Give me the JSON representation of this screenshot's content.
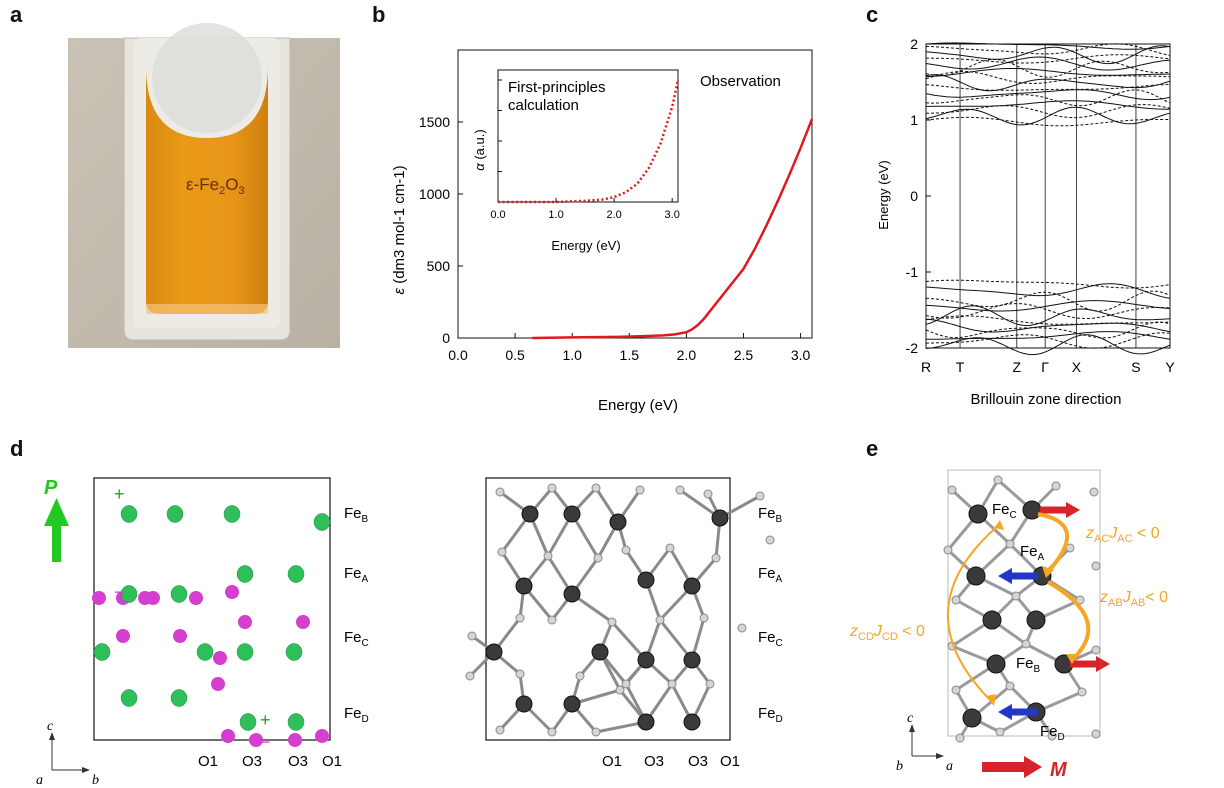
{
  "panels": {
    "a": {
      "letter": "a",
      "sample_label": "ε-Fe",
      "sample_sub1": "2",
      "sample_mid": "O",
      "sample_sub2": "3"
    },
    "b": {
      "letter": "b"
    },
    "c": {
      "letter": "c"
    },
    "d": {
      "letter": "d",
      "p_label": "P",
      "plus": "+",
      "minus": "−",
      "fe_labels": [
        {
          "base": "Fe",
          "sub": "B"
        },
        {
          "base": "Fe",
          "sub": "A"
        },
        {
          "base": "Fe",
          "sub": "C"
        },
        {
          "base": "Fe",
          "sub": "D"
        }
      ],
      "o_labels": [
        "O1",
        "O3",
        "O3",
        "O1"
      ],
      "axis_c": "c",
      "axis_a": "a",
      "axis_b": "b",
      "colors": {
        "positive": "#2fbf5a",
        "negative": "#d43fd0",
        "arrow": "#22c922"
      }
    },
    "e": {
      "letter": "e",
      "fe_labels": [
        {
          "base": "Fe",
          "sub": "C"
        },
        {
          "base": "Fe",
          "sub": "A"
        },
        {
          "base": "Fe",
          "sub": "B"
        },
        {
          "base": "Fe",
          "sub": "D"
        }
      ],
      "j_ac": {
        "z": "z",
        "zsub": "AC",
        "j": "J",
        "jsub": "AC",
        "rel": " < 0"
      },
      "j_ab": {
        "z": "z",
        "zsub": "AB",
        "j": "J",
        "jsub": "AB",
        "rel": "< 0"
      },
      "j_cd": {
        "z": "z",
        "zsub": "CD",
        "j": "J",
        "jsub": "CD",
        "rel": " < 0"
      },
      "axis_c": "c",
      "axis_b": "b",
      "axis_a": "a",
      "m_label": "M",
      "colors": {
        "coupling": "#f5a623",
        "up_spin": "#d9232a",
        "down_spin": "#2436c8"
      }
    }
  },
  "chart_data": [
    {
      "type": "line",
      "panel": "b",
      "xlabel": "Energy (eV)",
      "ylabel": "ε (dm3 mol-1 cm-1)",
      "xlim": [
        0.0,
        3.1
      ],
      "ylim": [
        0,
        2000
      ],
      "xticks": [
        "0.0",
        "0.5",
        "1.0",
        "1.5",
        "2.0",
        "2.5",
        "3.0"
      ],
      "xtick_values": [
        0.0,
        0.5,
        1.0,
        1.5,
        2.0,
        2.5,
        3.0
      ],
      "yticks": [
        "0",
        "500",
        "1000",
        "1500"
      ],
      "ytick_values": [
        0,
        500,
        1000,
        1500
      ],
      "annotation": "Observation",
      "color": "#e0191f",
      "series": [
        {
          "x": [
            0.65,
            0.8,
            1.0,
            1.2,
            1.4,
            1.6,
            1.8,
            1.9,
            2.0,
            2.05,
            2.1,
            2.15,
            2.2,
            2.25,
            2.3,
            2.4,
            2.5,
            2.6,
            2.7,
            2.8,
            2.9,
            3.0,
            3.1
          ],
          "y": [
            0,
            2,
            4,
            6,
            8,
            12,
            18,
            25,
            40,
            60,
            90,
            130,
            180,
            230,
            280,
            380,
            480,
            620,
            780,
            950,
            1130,
            1320,
            1520
          ]
        }
      ],
      "inset": {
        "type": "line",
        "title": "First-principles calculation",
        "title_line1": "First-principles",
        "title_line2": "calculation",
        "xlabel": "Energy (eV)",
        "ylabel": "α (a.u.)",
        "xlim": [
          0.0,
          3.1
        ],
        "xticks": [
          "0.0",
          "1.0",
          "2.0",
          "3.0"
        ],
        "xtick_values": [
          0.0,
          1.0,
          2.0,
          3.0
        ],
        "style": "dotted",
        "series": [
          {
            "x": [
              0.0,
              0.5,
              1.0,
              1.5,
              1.8,
              2.0,
              2.2,
              2.4,
              2.6,
              2.8,
              3.0,
              3.1
            ],
            "y": [
              0.0,
              0.0,
              0.0,
              0.01,
              0.02,
              0.04,
              0.08,
              0.15,
              0.28,
              0.48,
              0.78,
              1.0
            ]
          }
        ]
      }
    },
    {
      "type": "line",
      "panel": "c",
      "xlabel": "Brillouin zone direction",
      "ylabel": "Energy (eV)",
      "ylim": [
        -2,
        2
      ],
      "yticks": [
        "2",
        "1",
        "0",
        "-1",
        "-2"
      ],
      "ytick_values": [
        2,
        1,
        0,
        -1,
        -2
      ],
      "kpoints": [
        "R",
        "T",
        "Z",
        "Γ",
        "X",
        "S",
        "Y"
      ],
      "kpoint_positions": [
        0.0,
        0.12,
        0.32,
        0.42,
        0.53,
        0.74,
        0.86
      ],
      "xlim": [
        0.0,
        0.86
      ]
    }
  ]
}
